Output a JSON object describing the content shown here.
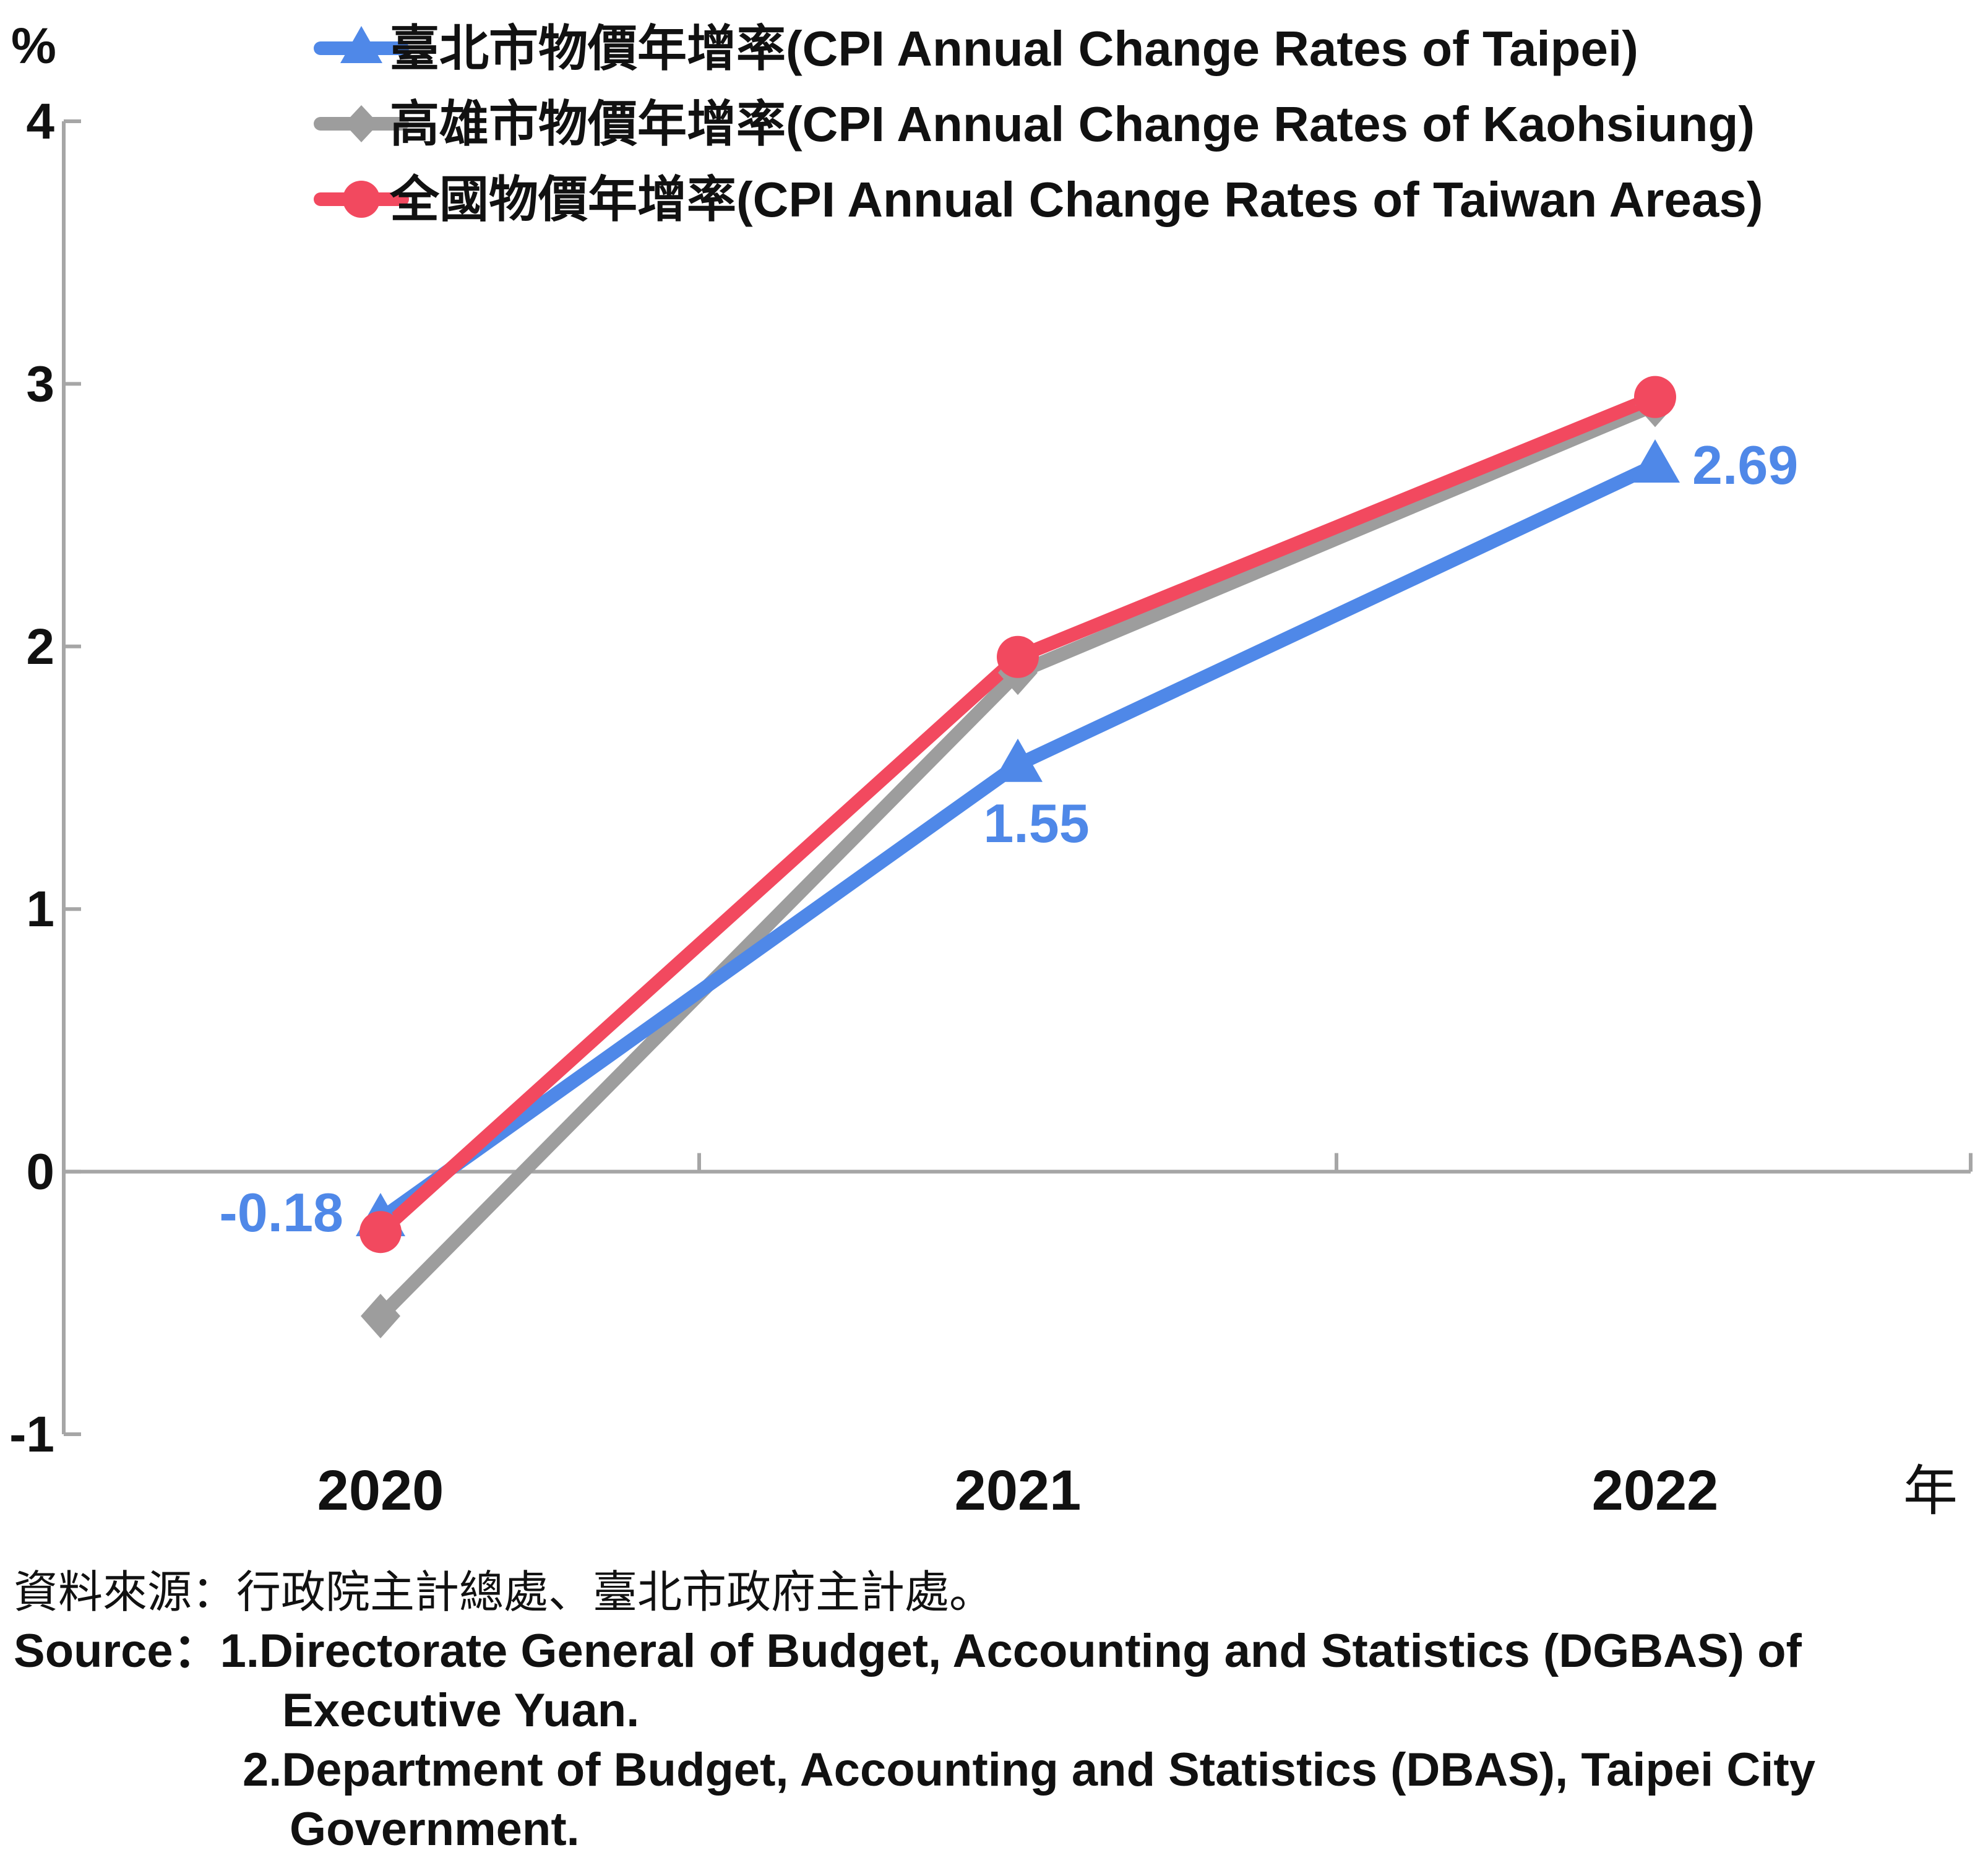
{
  "chart_data": {
    "type": "line",
    "ylabel": "%",
    "xlabel": "年",
    "ylim": [
      -1,
      4
    ],
    "yticks": [
      "-1",
      "0",
      "1",
      "2",
      "3",
      "4"
    ],
    "categories": [
      "2020",
      "2021",
      "2022"
    ],
    "grid": false,
    "legend_position": "top",
    "series": [
      {
        "name": "臺北市物價年增率(CPI Annual Change Rates of Taipei)",
        "values": [
          -0.18,
          1.55,
          2.69
        ],
        "data_labels": [
          "-0.18",
          "1.55",
          "2.69"
        ],
        "color": "#4f88e8",
        "marker": "triangle"
      },
      {
        "name": "高雄市物價年增率(CPI Annual Change Rates of Kaohsiung)",
        "values": [
          -0.55,
          1.9,
          2.92
        ],
        "data_labels": [],
        "color": "#9d9d9d",
        "marker": "diamond"
      },
      {
        "name": "全國物價年增率(CPI Annual Change Rates of Taiwan Areas)",
        "values": [
          -0.23,
          1.96,
          2.95
        ],
        "data_labels": [],
        "color": "#f2495f",
        "marker": "circle"
      }
    ]
  },
  "source": {
    "cn": "資料來源：行政院主計總處、臺北市政府主計處。",
    "en_prefix": "Source：",
    "item1_a": "1.Directorate General of Budget, Accounting and Statistics (DGBAS) of",
    "item1_b": "Executive Yuan.",
    "item2_a": "2.Department of Budget, Accounting and Statistics (DBAS), Taipei City",
    "item2_b": "Government."
  }
}
